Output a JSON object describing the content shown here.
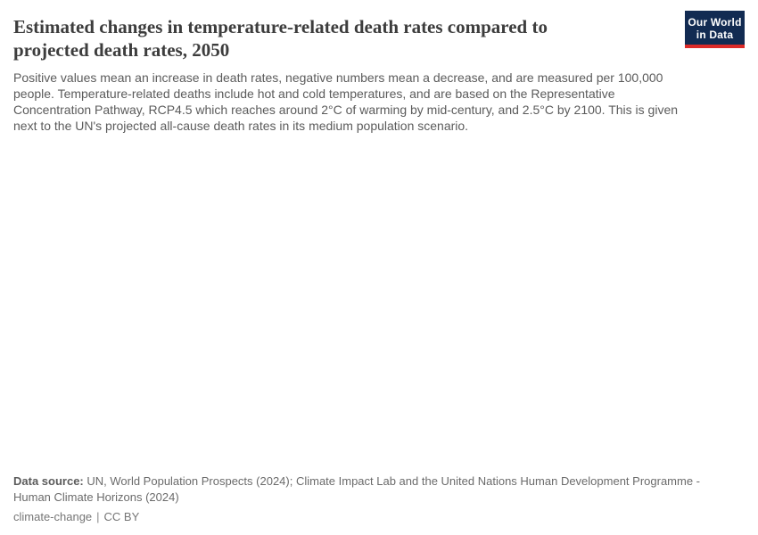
{
  "header": {
    "title_lines": [
      "Estimated changes in temperature-related death rates compared to",
      "projected death rates, 2050"
    ],
    "title_full": "Estimated changes in temperature-related death rates compared to projected death rates, 2050"
  },
  "logo": {
    "line1": "Our World",
    "line2": "in Data",
    "bg_color": "#122b52",
    "bar_color": "#dc2a28",
    "text_color": "#ffffff"
  },
  "subtitle": {
    "lines": [
      "Positive values mean an increase in death rates, negative numbers mean a decrease, and are measured per 100,000",
      "people. Temperature-related deaths include hot and cold temperatures, and are based on the Representative",
      "Concentration Pathway, RCP4.5 which reaches around 2°C of warming by mid-century, and 2.5°C by 2100. This is given",
      "next to the UN's projected all-cause death rates in its medium population scenario."
    ]
  },
  "footer": {
    "datasource_label": "Data source:",
    "datasource_rest": " UN, World Population Prospects (2024); Climate Impact Lab and the United Nations Human Development Programme -",
    "datasource_line2": "Human Climate Horizons (2024)",
    "tag": "climate-change",
    "separator": "|",
    "license": "CC BY"
  },
  "colors": {
    "title": "#3d3d3d",
    "subtitle": "#5b5b5b",
    "footer_text": "#6b6b6b",
    "license_text": "#757575",
    "background": "#ffffff"
  },
  "chart_data": {
    "type": "empty",
    "title": "Estimated changes in temperature-related death rates compared to projected death rates, 2050",
    "categories": [],
    "values": [],
    "note_visible_state": "chart plot area is blank/unrendered in the screenshot"
  }
}
